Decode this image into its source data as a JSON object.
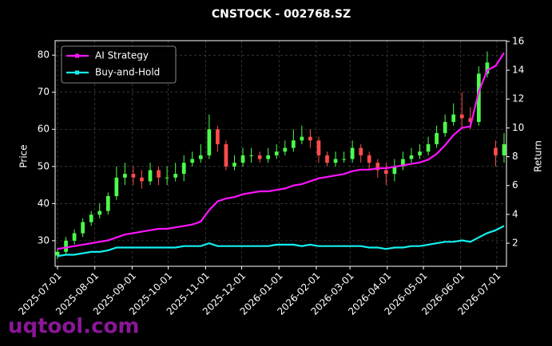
{
  "chart_data": {
    "type": "candlestick",
    "title": "CNSTOCK - 002768.SZ",
    "ylabel": "Price",
    "y2label": "Return",
    "watermark": "uqtool.com",
    "x": [
      "2025-07-01",
      "2025-07-08",
      "2025-07-15",
      "2025-07-22",
      "2025-07-29",
      "2025-08-05",
      "2025-08-12",
      "2025-08-19",
      "2025-08-26",
      "2025-09-02",
      "2025-09-09",
      "2025-09-16",
      "2025-09-23",
      "2025-09-30",
      "2025-10-07",
      "2025-10-14",
      "2025-10-21",
      "2025-10-28",
      "2025-11-04",
      "2025-11-11",
      "2025-11-18",
      "2025-11-25",
      "2025-12-02",
      "2025-12-09",
      "2025-12-16",
      "2025-12-23",
      "2025-12-30",
      "2026-01-06",
      "2026-01-13",
      "2026-01-20",
      "2026-01-27",
      "2026-02-03",
      "2026-02-10",
      "2026-02-17",
      "2026-02-24",
      "2026-03-03",
      "2026-03-10",
      "2026-03-17",
      "2026-03-24",
      "2026-03-31",
      "2026-04-07",
      "2026-04-14",
      "2026-04-21",
      "2026-04-28",
      "2026-05-05",
      "2026-05-12",
      "2026-05-19",
      "2026-05-26",
      "2026-06-02",
      "2026-06-09",
      "2026-06-16",
      "2026-06-23",
      "2026-06-30",
      "2026-07-07"
    ],
    "open": [
      26,
      27,
      30,
      32,
      35,
      37,
      38,
      42,
      47,
      48,
      47,
      46,
      49,
      47,
      47,
      48,
      51,
      52,
      53,
      60,
      56,
      50,
      51,
      53,
      53,
      52,
      53,
      54,
      55,
      57,
      58,
      57,
      53,
      51,
      52,
      52,
      55,
      53,
      51,
      49,
      48,
      50,
      52,
      53,
      54,
      56,
      59,
      62,
      64,
      63,
      62,
      75,
      55,
      53
    ],
    "high": [
      28,
      31,
      33,
      36,
      38,
      40,
      43,
      50,
      51,
      50,
      49,
      51,
      50,
      50,
      51,
      53,
      54,
      56,
      64,
      61,
      57,
      53,
      55,
      55,
      54,
      55,
      56,
      57,
      60,
      61,
      60,
      58,
      54,
      54,
      54,
      57,
      56,
      54,
      52,
      51,
      52,
      54,
      55,
      56,
      58,
      61,
      64,
      67,
      70,
      66,
      77,
      81,
      57,
      59
    ],
    "low": [
      25,
      26,
      29,
      31,
      34,
      36,
      37,
      41,
      45,
      45,
      44,
      45,
      45,
      45,
      46,
      46,
      50,
      51,
      52,
      54,
      49,
      49,
      50,
      51,
      51,
      51,
      52,
      53,
      54,
      56,
      55,
      51,
      50,
      50,
      51,
      51,
      51,
      49,
      47,
      45,
      46,
      49,
      51,
      52,
      53,
      55,
      58,
      61,
      60,
      60,
      61,
      74,
      50,
      51
    ],
    "close": [
      27,
      30,
      32,
      35,
      37,
      38,
      42,
      47,
      48,
      47,
      46,
      49,
      47,
      47,
      48,
      51,
      52,
      53,
      60,
      56,
      50,
      51,
      53,
      53,
      52,
      53,
      54,
      55,
      57,
      58,
      57,
      53,
      51,
      52,
      52,
      55,
      53,
      51,
      49,
      48,
      50,
      52,
      53,
      54,
      56,
      59,
      62,
      64,
      63,
      62,
      75,
      78,
      53,
      56
    ],
    "up_color": "#4cff4c",
    "down_color": "#ff4c4c",
    "series": [
      {
        "name": "AI Strategy",
        "color": "#ff14ff",
        "axis": "y2",
        "values": [
          1.6,
          1.7,
          1.8,
          1.9,
          2.0,
          2.1,
          2.2,
          2.4,
          2.6,
          2.7,
          2.8,
          2.9,
          3.0,
          3.0,
          3.1,
          3.2,
          3.3,
          3.5,
          4.3,
          4.9,
          5.1,
          5.2,
          5.4,
          5.5,
          5.6,
          5.6,
          5.7,
          5.8,
          6.0,
          6.1,
          6.3,
          6.5,
          6.6,
          6.7,
          6.8,
          7.0,
          7.1,
          7.1,
          7.2,
          7.2,
          7.3,
          7.4,
          7.5,
          7.6,
          7.8,
          8.2,
          8.8,
          9.5,
          10.0,
          10.1,
          12.5,
          14.0,
          14.3,
          15.2
        ]
      },
      {
        "name": "Buy-and-Hold",
        "color": "#14f0f0",
        "axis": "y2",
        "values": [
          1.1,
          1.2,
          1.2,
          1.3,
          1.4,
          1.4,
          1.5,
          1.7,
          1.7,
          1.7,
          1.7,
          1.7,
          1.7,
          1.7,
          1.7,
          1.8,
          1.8,
          1.8,
          2.0,
          1.8,
          1.8,
          1.8,
          1.8,
          1.8,
          1.8,
          1.8,
          1.9,
          1.9,
          1.9,
          1.8,
          1.9,
          1.8,
          1.8,
          1.8,
          1.8,
          1.8,
          1.8,
          1.7,
          1.7,
          1.6,
          1.7,
          1.7,
          1.8,
          1.8,
          1.9,
          2.0,
          2.1,
          2.1,
          2.2,
          2.1,
          2.4,
          2.7,
          2.9,
          3.2
        ]
      }
    ],
    "xlim": [
      "2025-06-29",
      "2026-07-09"
    ],
    "xticks": [
      "2025-07-01",
      "2025-08-01",
      "2025-09-01",
      "2025-10-01",
      "2025-11-01",
      "2025-12-01",
      "2026-01-01",
      "2026-02-01",
      "2026-03-01",
      "2026-04-01",
      "2026-05-01",
      "2026-06-01",
      "2026-07-01"
    ],
    "ylim": [
      23.1,
      83.9
    ],
    "yticks": [
      30,
      40,
      50,
      60,
      70,
      80
    ],
    "y2lim": [
      0.4,
      16.05
    ],
    "y2ticks": [
      2,
      4,
      6,
      8,
      10,
      12,
      14,
      16
    ],
    "grid": true,
    "legend": "upper left"
  }
}
